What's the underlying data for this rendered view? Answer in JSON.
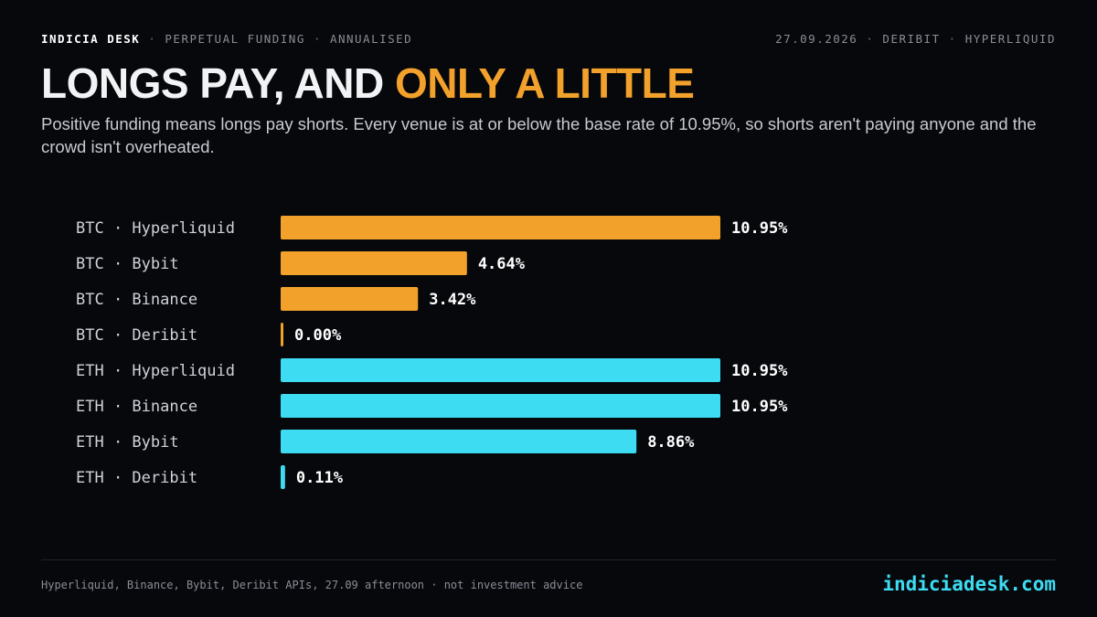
{
  "header": {
    "brand": "INDICIA DESK",
    "section": "PERPETUAL FUNDING",
    "subsection": "ANNUALISED",
    "date": "27.09.2026",
    "source_a": "DERIBIT",
    "source_b": "HYPERLIQUID",
    "separator": "·"
  },
  "title": {
    "lead": "LONGS PAY, AND ",
    "highlight": "ONLY A LITTLE"
  },
  "subtitle": "Positive funding means longs pay shorts. Every venue is at or below the base rate of 10.95%, so shorts aren't paying anyone and the crowd isn't overheated.",
  "colors": {
    "btc": "#f2a12b",
    "eth": "#3ddcf2",
    "background": "#07080c"
  },
  "chart_data": {
    "type": "bar",
    "orientation": "horizontal",
    "unit": "%",
    "categories": [
      "BTC · Hyperliquid",
      "BTC · Bybit",
      "BTC · Binance",
      "BTC · Deribit",
      "ETH · Hyperliquid",
      "ETH · Binance",
      "ETH · Bybit",
      "ETH · Deribit"
    ],
    "groups": [
      "BTC",
      "BTC",
      "BTC",
      "BTC",
      "ETH",
      "ETH",
      "ETH",
      "ETH"
    ],
    "values": [
      10.95,
      4.64,
      3.42,
      0.0,
      10.95,
      10.95,
      8.86,
      0.11
    ],
    "value_labels": [
      "10.95%",
      "4.64%",
      "3.42%",
      "0.00%",
      "10.95%",
      "10.95%",
      "8.86%",
      "0.11%"
    ],
    "xlim": [
      0,
      10.95
    ],
    "grid": false,
    "legend": "none"
  },
  "footer": {
    "note": "Hyperliquid, Binance, Bybit, Deribit APIs, 27.09 afternoon · not investment advice",
    "site": "indiciadesk.com"
  }
}
